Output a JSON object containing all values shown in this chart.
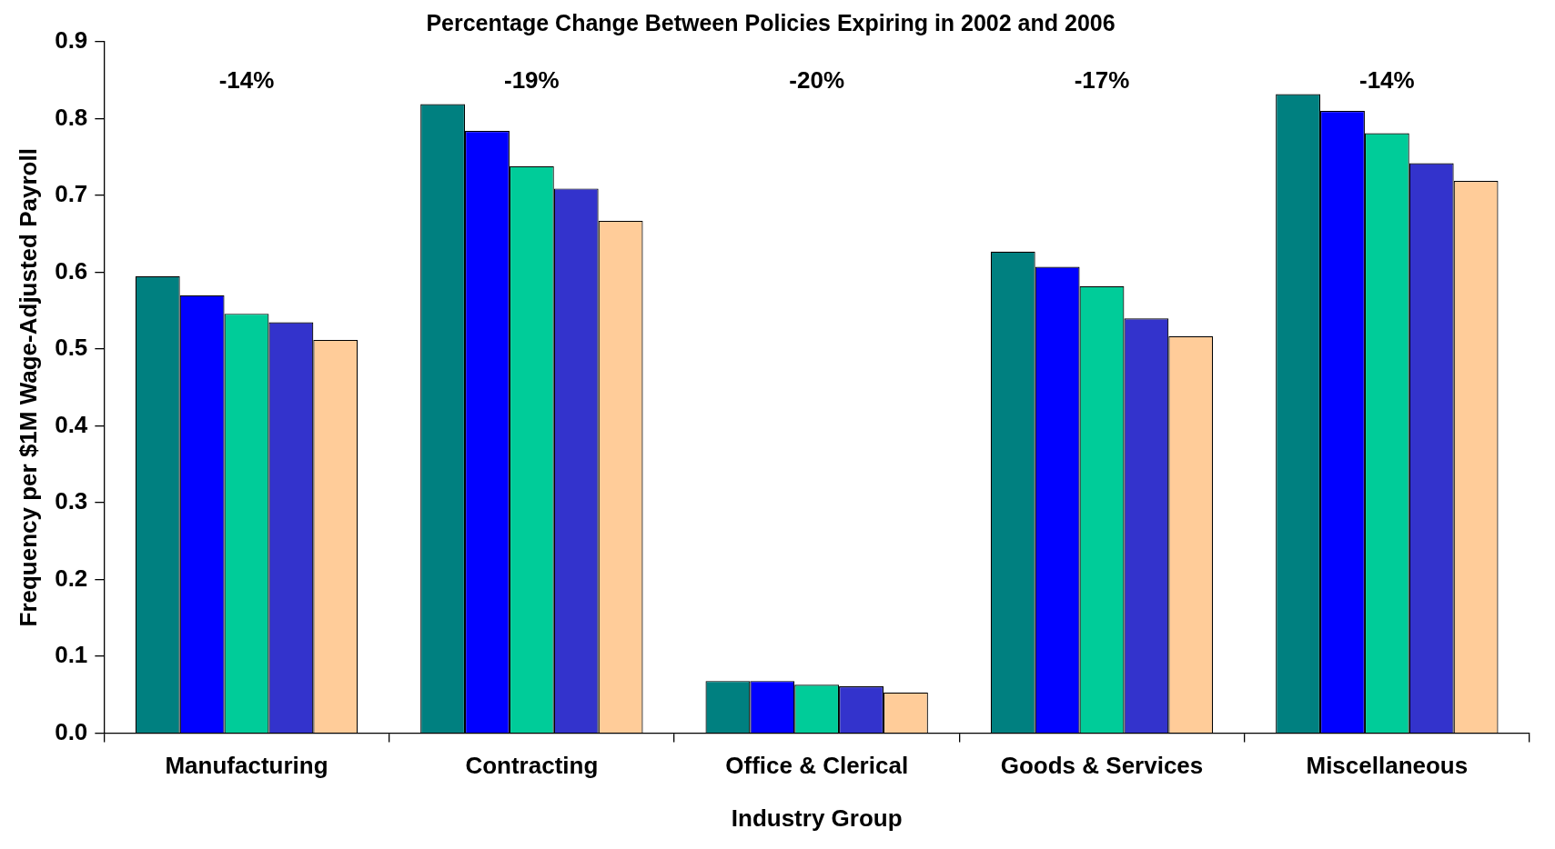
{
  "chart_data": {
    "type": "bar",
    "title": "Percentage Change Between Policies Expiring in 2002 and 2006",
    "xlabel": "Industry Group",
    "ylabel": "Frequency per $1M Wage-Adjusted Payroll",
    "categories": [
      "Manufacturing",
      "Contracting",
      "Office & Clerical",
      "Goods & Services",
      "Miscellaneous"
    ],
    "series": [
      {
        "color": "#008080",
        "values": [
          0.595,
          0.819,
          0.068,
          0.627,
          0.832
        ]
      },
      {
        "color": "#0000ff",
        "values": [
          0.57,
          0.784,
          0.068,
          0.607,
          0.81
        ]
      },
      {
        "color": "#00cc99",
        "values": [
          0.546,
          0.738,
          0.063,
          0.582,
          0.781
        ]
      },
      {
        "color": "#3333cc",
        "values": [
          0.535,
          0.709,
          0.061,
          0.54,
          0.742
        ]
      },
      {
        "color": "#ffcc99",
        "values": [
          0.512,
          0.667,
          0.053,
          0.517,
          0.719
        ]
      }
    ],
    "ylim": [
      0,
      0.9
    ],
    "yticks": [
      {
        "value": 0,
        "label": "0.0"
      },
      0.1,
      0.2,
      0.3,
      0.4,
      0.5,
      0.6,
      0.7,
      0.8,
      0.9
    ],
    "grid": false,
    "legend": false,
    "annotations": [
      "-14%",
      "-19%",
      "-20%",
      "-17%",
      "-14%"
    ]
  }
}
